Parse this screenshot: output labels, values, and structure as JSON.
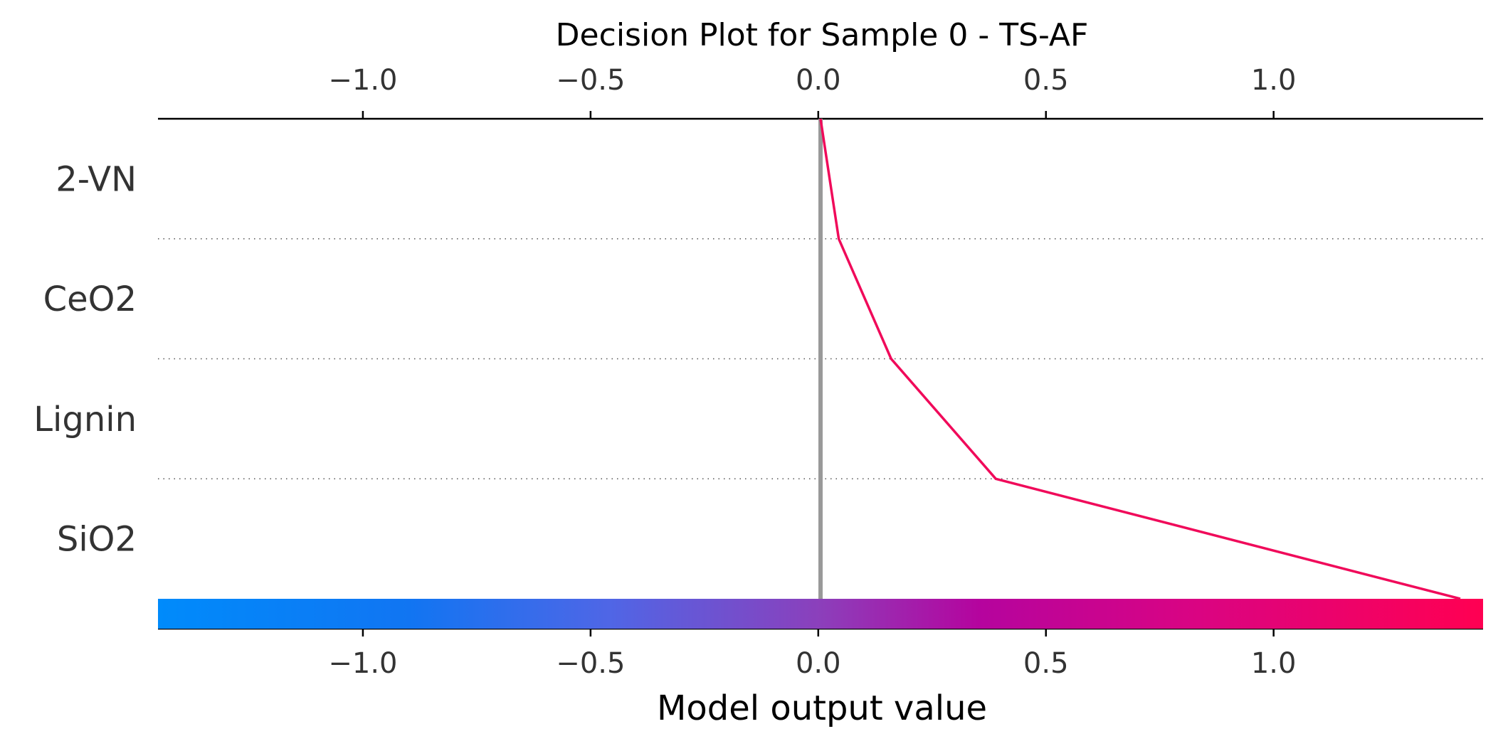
{
  "chart_data": {
    "type": "line",
    "title": "Decision Plot for Sample 0 - TS-AF",
    "xlabel": "Model output value",
    "ylabel": "",
    "xlim": [
      -1.45,
      1.46
    ],
    "x_ticks": [
      -1.0,
      -0.5,
      0.0,
      0.5,
      1.0
    ],
    "x_tick_labels": [
      "−1.0",
      "−0.5",
      "0.0",
      "0.5",
      "1.0"
    ],
    "features_top_to_bottom": [
      "2-VN",
      "CeO2",
      "Lignin",
      "SiO2"
    ],
    "base_value": 0.005,
    "path_x_top_to_bottom": [
      0.005,
      0.045,
      0.16,
      0.39,
      1.41
    ],
    "grid": "dotted horizontal separators between features",
    "colorbar": {
      "range": [
        -1.45,
        1.46
      ],
      "stops": [
        {
          "at": 0.0,
          "color": "#008bfb"
        },
        {
          "at": 0.19,
          "color": "#1175f2"
        },
        {
          "at": 0.34,
          "color": "#4f66e6"
        },
        {
          "at": 0.5,
          "color": "#8c3fbb"
        },
        {
          "at": 0.62,
          "color": "#b5049e"
        },
        {
          "at": 0.78,
          "color": "#d90483"
        },
        {
          "at": 1.0,
          "color": "#ff0052"
        }
      ]
    },
    "colors": {
      "line": "#f00a5a",
      "base_line": "#999999",
      "axis": "#000000",
      "grid": "#555555"
    }
  }
}
